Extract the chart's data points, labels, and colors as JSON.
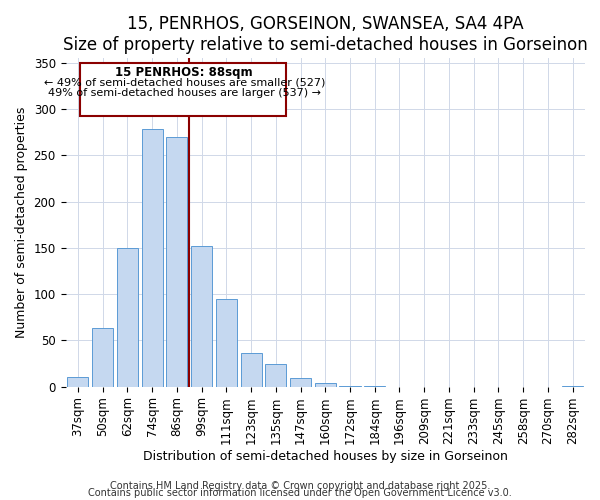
{
  "title": "15, PENRHOS, GORSEINON, SWANSEA, SA4 4PA",
  "subtitle": "Size of property relative to semi-detached houses in Gorseinon",
  "xlabel": "Distribution of semi-detached houses by size in Gorseinon",
  "ylabel": "Number of semi-detached properties",
  "bin_labels": [
    "37sqm",
    "50sqm",
    "62sqm",
    "74sqm",
    "86sqm",
    "99sqm",
    "111sqm",
    "123sqm",
    "135sqm",
    "147sqm",
    "160sqm",
    "172sqm",
    "184sqm",
    "196sqm",
    "209sqm",
    "221sqm",
    "233sqm",
    "245sqm",
    "258sqm",
    "270sqm",
    "282sqm"
  ],
  "bar_values": [
    10,
    63,
    150,
    278,
    270,
    152,
    95,
    36,
    24,
    9,
    4,
    1,
    1,
    0,
    0,
    0,
    0,
    0,
    0,
    0,
    1
  ],
  "bar_color": "#c5d8f0",
  "bar_edge_color": "#5b9bd5",
  "property_label": "15 PENRHOS: 88sqm",
  "smaller_pct": 49,
  "smaller_count": 527,
  "larger_pct": 49,
  "larger_count": 537,
  "vline_color": "#8b0000",
  "ylim": [
    0,
    355
  ],
  "yticks": [
    0,
    50,
    100,
    150,
    200,
    250,
    300,
    350
  ],
  "box_text_color": "#000000",
  "footnote1": "Contains HM Land Registry data © Crown copyright and database right 2025.",
  "footnote2": "Contains public sector information licensed under the Open Government Licence v3.0.",
  "title_fontsize": 12,
  "axis_fontsize": 9,
  "tick_fontsize": 8.5,
  "footnote_fontsize": 7
}
